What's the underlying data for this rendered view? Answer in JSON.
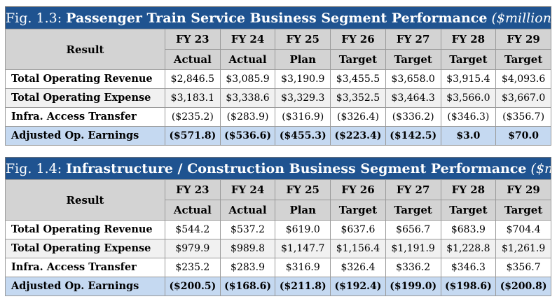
{
  "figures": [
    {
      "number": "Fig. 1.3:",
      "title": "Passenger Train Service Business Segment Performance",
      "unit": "($millions)",
      "result_header": "Result",
      "columns": [
        {
          "fy": "FY 23",
          "type": "Actual"
        },
        {
          "fy": "FY 24",
          "type": "Actual"
        },
        {
          "fy": "FY 25",
          "type": "Plan"
        },
        {
          "fy": "FY 26",
          "type": "Target"
        },
        {
          "fy": "FY 27",
          "type": "Target"
        },
        {
          "fy": "FY 28",
          "type": "Target"
        },
        {
          "fy": "FY 29",
          "type": "Target"
        }
      ],
      "rows": [
        {
          "label": "Total Operating Revenue",
          "values": [
            "$2,846.5",
            "$3,085.9",
            "$3,190.9",
            "$3,455.5",
            "$3,658.0",
            "$3,915.4",
            "$4,093.6"
          ]
        },
        {
          "label": "Total Operating Expense",
          "values": [
            "$3,183.1",
            "$3,338.6",
            "$3,329.3",
            "$3,352.5",
            "$3,464.3",
            "$3,566.0",
            "$3,667.0"
          ]
        },
        {
          "label": "Infra. Access Transfer",
          "values": [
            "($235.2)",
            "($283.9)",
            "($316.9)",
            "($326.4)",
            "($336.2)",
            "($346.3)",
            "($356.7)"
          ]
        },
        {
          "label": "Adjusted Op. Earnings",
          "values": [
            "($571.8)",
            "($536.6)",
            "($455.3)",
            "($223.4)",
            "($142.5)",
            "$3.0",
            "$70.0"
          ]
        }
      ]
    },
    {
      "number": "Fig. 1.4:",
      "title": "Infrastructure / Construction Business Segment Performance",
      "unit": "($millions)",
      "result_header": "Result",
      "columns": [
        {
          "fy": "FY 23",
          "type": "Actual"
        },
        {
          "fy": "FY 24",
          "type": "Actual"
        },
        {
          "fy": "FY 25",
          "type": "Plan"
        },
        {
          "fy": "FY 26",
          "type": "Target"
        },
        {
          "fy": "FY 27",
          "type": "Target"
        },
        {
          "fy": "FY 28",
          "type": "Target"
        },
        {
          "fy": "FY 29",
          "type": "Target"
        }
      ],
      "rows": [
        {
          "label": "Total Operating Revenue",
          "values": [
            "$544.2",
            "$537.2",
            "$619.0",
            "$637.6",
            "$656.7",
            "$683.9",
            "$704.4"
          ]
        },
        {
          "label": "Total Operating Expense",
          "values": [
            "$979.9",
            "$989.8",
            "$1,147.7",
            "$1,156.4",
            "$1,191.9",
            "$1,228.8",
            "$1,261.9"
          ]
        },
        {
          "label": "Infra. Access Transfer",
          "values": [
            "$235.2",
            "$283.9",
            "$316.9",
            "$326.4",
            "$336.2",
            "$346.3",
            "$356.7"
          ]
        },
        {
          "label": "Adjusted Op. Earnings",
          "values": [
            "($200.5)",
            "($168.6)",
            "($211.8)",
            "($192.4)",
            "($199.0)",
            "($198.6)",
            "($200.8)"
          ]
        }
      ]
    }
  ]
}
